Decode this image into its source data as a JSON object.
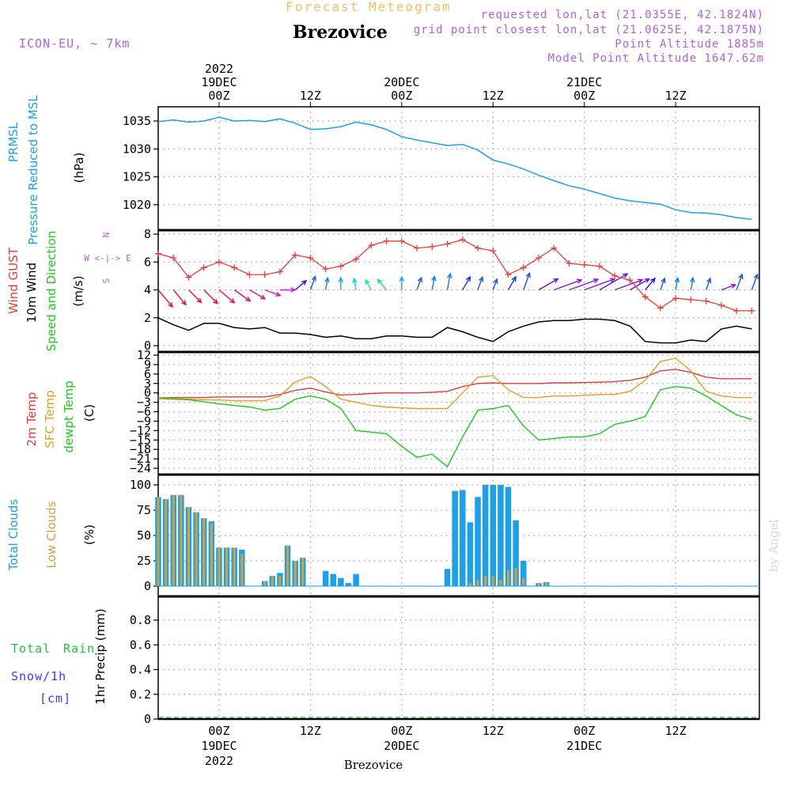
{
  "header": {
    "title": "Forecast Meteogram",
    "location": "Brezovice",
    "model": "ICON-EU, ~ 7km",
    "requested": "requested lon,lat (21.0355E, 42.1824N)",
    "gridpoint": "grid point closest lon,lat (21.0625E, 42.1875N)",
    "altitude": "Point Altitude 1885m",
    "model_altitude": "Model Point Altitude 1647.62m",
    "footer_location": "Brezovice",
    "watermark": "by Angel"
  },
  "time_axis": {
    "top": [
      {
        "hour": 0,
        "lines": [
          "2022",
          "19DEC",
          "00Z"
        ]
      },
      {
        "hour": 12,
        "lines": [
          "12Z"
        ]
      },
      {
        "hour": 24,
        "lines": [
          "20DEC",
          "00Z"
        ]
      },
      {
        "hour": 36,
        "lines": [
          "12Z"
        ]
      },
      {
        "hour": 48,
        "lines": [
          "21DEC",
          "00Z"
        ]
      },
      {
        "hour": 60,
        "lines": [
          "12Z"
        ]
      }
    ],
    "bottom": [
      {
        "hour": 0,
        "lines": [
          "00Z",
          "19DEC",
          "2022"
        ]
      },
      {
        "hour": 12,
        "lines": [
          "12Z"
        ]
      },
      {
        "hour": 24,
        "lines": [
          "00Z",
          "20DEC"
        ]
      },
      {
        "hour": 36,
        "lines": [
          "12Z"
        ]
      },
      {
        "hour": 48,
        "lines": [
          "00Z",
          "21DEC"
        ]
      },
      {
        "hour": 60,
        "lines": [
          "12Z"
        ]
      }
    ]
  },
  "panels": {
    "pressure": {
      "labels": [
        "PRMSL",
        "Pressure Reduced to MSL"
      ],
      "unit": "(hPa)"
    },
    "wind": {
      "labels": [
        "Wind GUST",
        "10m Wind",
        "Speed and Direction"
      ],
      "unit": "(m/s)",
      "compass": [
        "N",
        "W <-|-> E",
        "S"
      ]
    },
    "temperature": {
      "labels": [
        "2m Temp",
        "SFC Temp",
        "dewpt Temp"
      ],
      "unit": "(C)"
    },
    "clouds": {
      "labels": [
        "Total Clouds",
        "Low Clouds"
      ],
      "unit": "(%)"
    },
    "precip": {
      "labels": [
        "Total",
        "Rain",
        "Snow/1h",
        "[cm]"
      ],
      "axis_label": "1hr Precip (mm)"
    }
  },
  "colors": {
    "pressure": "#1ea0e6",
    "gust": "#e83c3c",
    "wind": "#000000",
    "t2m": "#e03a3a",
    "sfc": "#e0a020",
    "dewpt": "#1ec81e",
    "total_clouds": "#1ea0e6",
    "low_clouds": "#d2a040",
    "header_purple": "#b060e0",
    "title_orange": "#f0c060",
    "rain_green": "#20c040",
    "snow_blue": "#3b3bef"
  },
  "chart_data": [
    {
      "type": "line",
      "name": "pressure",
      "x_unit": "hours from 19DEC 00Z",
      "ylabel": "PRMSL Pressure Reduced to MSL (hPa)",
      "ylim": [
        1017,
        1037
      ],
      "yticks": [
        1020,
        1025,
        1030,
        1035
      ],
      "xlim": [
        -8,
        71
      ],
      "grid": true,
      "series": [
        {
          "x": [
            -8,
            -6,
            -4,
            -2,
            0,
            2,
            4,
            6,
            8,
            10,
            12,
            14,
            16,
            18,
            20,
            22,
            24,
            26,
            28,
            30,
            32,
            34,
            36,
            38,
            40,
            42,
            44,
            46,
            48,
            50,
            52,
            54,
            56,
            58,
            60,
            62,
            64,
            66,
            68,
            70
          ],
          "y": [
            1034.9,
            1035.2,
            1034.8,
            1035.0,
            1035.7,
            1035.0,
            1035.1,
            1034.9,
            1035.4,
            1034.6,
            1033.5,
            1033.6,
            1034.0,
            1034.8,
            1034.3,
            1033.5,
            1032.2,
            1031.6,
            1031.1,
            1030.6,
            1030.8,
            1029.8,
            1028.0,
            1027.3,
            1026.4,
            1025.3,
            1024.3,
            1023.4,
            1022.8,
            1022.0,
            1021.2,
            1020.7,
            1020.4,
            1020.1,
            1019.1,
            1018.6,
            1018.5,
            1018.2,
            1017.7,
            1017.4
          ]
        }
      ]
    },
    {
      "type": "line",
      "name": "wind",
      "x_unit": "hours from 19DEC 00Z",
      "ylabel": "Wind GUST / 10m Wind Speed and Direction (m/s)",
      "ylim": [
        0,
        8
      ],
      "yticks": [
        0,
        2,
        4,
        6,
        8
      ],
      "xlim": [
        -8,
        71
      ],
      "grid": true,
      "series": [
        {
          "name": "Wind GUST",
          "x": [
            -8,
            -6,
            -4,
            -2,
            0,
            2,
            4,
            6,
            8,
            10,
            12,
            14,
            16,
            18,
            20,
            22,
            24,
            26,
            28,
            30,
            32,
            34,
            36,
            38,
            40,
            42,
            44,
            46,
            48,
            50,
            52,
            54,
            56,
            58,
            60,
            62,
            64,
            66,
            68,
            70
          ],
          "y": [
            6.6,
            6.3,
            4.9,
            5.6,
            6.0,
            5.6,
            5.1,
            5.1,
            5.3,
            6.5,
            6.3,
            5.5,
            5.7,
            6.2,
            7.2,
            7.5,
            7.5,
            7.0,
            7.1,
            7.3,
            7.6,
            7.0,
            6.8,
            5.1,
            5.6,
            6.3,
            7.0,
            5.9,
            5.8,
            5.7,
            5.0,
            4.7,
            3.5,
            2.7,
            3.4,
            3.3,
            3.2,
            2.9,
            2.5,
            2.5
          ]
        },
        {
          "name": "10m Wind",
          "x": [
            -8,
            -6,
            -4,
            -2,
            0,
            2,
            4,
            6,
            8,
            10,
            12,
            14,
            16,
            18,
            20,
            22,
            24,
            26,
            28,
            30,
            32,
            34,
            36,
            38,
            40,
            42,
            44,
            46,
            48,
            50,
            52,
            54,
            56,
            58,
            60,
            62,
            64,
            66,
            68,
            70
          ],
          "y": [
            2.0,
            1.5,
            1.1,
            1.6,
            1.6,
            1.3,
            1.2,
            1.3,
            0.9,
            0.9,
            0.8,
            0.6,
            0.7,
            0.5,
            0.5,
            0.7,
            0.7,
            0.6,
            0.6,
            1.3,
            1.0,
            0.6,
            0.3,
            1.0,
            1.4,
            1.7,
            1.8,
            1.8,
            1.9,
            1.9,
            1.8,
            1.4,
            0.3,
            0.2,
            0.2,
            0.4,
            0.3,
            1.2,
            1.4,
            1.2
          ]
        }
      ],
      "wind_arrows": {
        "baseline": 4,
        "x": [
          -8,
          -6,
          -4,
          -2,
          0,
          2,
          4,
          6,
          8,
          10,
          12,
          14,
          16,
          18,
          20,
          22,
          24,
          26,
          28,
          30,
          32,
          34,
          36,
          38,
          40,
          42,
          44,
          46,
          48,
          50,
          52,
          54,
          56,
          58,
          60,
          62,
          64,
          66,
          68,
          70
        ],
        "dir": [
          320,
          320,
          315,
          315,
          310,
          305,
          300,
          290,
          270,
          230,
          200,
          190,
          180,
          170,
          150,
          140,
          180,
          200,
          190,
          190,
          210,
          200,
          200,
          210,
          200,
          240,
          250,
          250,
          250,
          240,
          250,
          240,
          220,
          200,
          190,
          190,
          200,
          250,
          200,
          200
        ],
        "speed": [
          2.0,
          1.6,
          1.4,
          1.6,
          1.7,
          1.6,
          1.4,
          1.2,
          1.0,
          0.9,
          0.9,
          0.6,
          0.6,
          0.5,
          0.5,
          0.8,
          0.7,
          0.7,
          0.8,
          1.2,
          1.0,
          0.8,
          0.5,
          1.0,
          1.4,
          2.0,
          3.0,
          3.2,
          3.4,
          3.4,
          3.0,
          2.0,
          1.0,
          0.6,
          0.6,
          0.6,
          0.6,
          1.0,
          1.2,
          1.2
        ]
      }
    },
    {
      "type": "line",
      "name": "temperature",
      "x_unit": "hours from 19DEC 00Z",
      "ylabel": "2m Temp / SFC Temp / dewpt Temp (C)",
      "ylim": [
        -25,
        12
      ],
      "yticks": [
        12,
        9,
        6,
        3,
        0,
        -3,
        -6,
        -9,
        -12,
        -15,
        -18,
        -21,
        -24
      ],
      "xlim": [
        -8,
        71
      ],
      "grid": true,
      "series": [
        {
          "name": "2m Temp",
          "x": [
            -8,
            -6,
            -4,
            -2,
            0,
            2,
            4,
            6,
            8,
            10,
            12,
            14,
            16,
            18,
            20,
            22,
            24,
            26,
            28,
            30,
            32,
            34,
            36,
            38,
            40,
            42,
            44,
            46,
            48,
            50,
            52,
            54,
            56,
            58,
            60,
            62,
            64,
            66,
            68,
            70
          ],
          "y": [
            -1.5,
            -1.5,
            -1.5,
            -1.5,
            -1.3,
            -1.3,
            -1.3,
            -1.3,
            -0.5,
            0.8,
            1.5,
            0.3,
            -0.7,
            -0.5,
            -0.2,
            0.0,
            0.0,
            0.0,
            0.2,
            0.5,
            2.0,
            3.0,
            3.2,
            3.0,
            3.0,
            3.0,
            3.2,
            3.2,
            3.3,
            3.4,
            3.6,
            4.0,
            5.0,
            7.0,
            7.5,
            6.5,
            5.0,
            4.5,
            4.5,
            4.5
          ]
        },
        {
          "name": "SFC Temp",
          "x": [
            -8,
            -6,
            -4,
            -2,
            0,
            2,
            4,
            6,
            8,
            10,
            12,
            14,
            16,
            18,
            20,
            22,
            24,
            26,
            28,
            30,
            32,
            34,
            36,
            38,
            40,
            42,
            44,
            46,
            48,
            50,
            52,
            54,
            56,
            58,
            60,
            62,
            64,
            66,
            68,
            70
          ],
          "y": [
            -1.5,
            -1.8,
            -2.0,
            -2.2,
            -2.3,
            -2.5,
            -2.5,
            -2.5,
            -1.0,
            3.5,
            5.2,
            2.0,
            -2.0,
            -3.0,
            -4.0,
            -4.5,
            -4.8,
            -5.0,
            -5.0,
            -5.0,
            0.0,
            5.0,
            5.5,
            1.0,
            -1.5,
            -1.5,
            -1.0,
            -1.0,
            -0.8,
            -0.5,
            -0.5,
            0.5,
            4.0,
            10.0,
            11.0,
            7.0,
            0.5,
            -1.0,
            -1.5,
            -1.5
          ]
        },
        {
          "name": "dewpt Temp",
          "x": [
            -8,
            -6,
            -4,
            -2,
            0,
            2,
            4,
            6,
            8,
            10,
            12,
            14,
            16,
            18,
            20,
            22,
            24,
            26,
            28,
            30,
            32,
            34,
            36,
            38,
            40,
            42,
            44,
            46,
            48,
            50,
            52,
            54,
            56,
            58,
            60,
            62,
            64,
            66,
            68,
            70
          ],
          "y": [
            -1.8,
            -2.0,
            -2.2,
            -2.8,
            -3.5,
            -4.0,
            -4.5,
            -5.5,
            -5.0,
            -2.0,
            -1.0,
            -2.0,
            -5.0,
            -12.0,
            -12.5,
            -13.0,
            -17.0,
            -20.5,
            -19.5,
            -23.5,
            -14.0,
            -5.5,
            -5.0,
            -4.0,
            -10.5,
            -15.0,
            -14.5,
            -14.0,
            -14.0,
            -13.0,
            -10.0,
            -9.0,
            -7.5,
            1.0,
            2.0,
            1.5,
            -1.0,
            -4.0,
            -7.0,
            -8.5
          ]
        }
      ]
    },
    {
      "type": "bar",
      "name": "clouds",
      "x_unit": "hours from 19DEC 00Z",
      "ylabel": "Total Clouds / Low Clouds (%)",
      "ylim": [
        0,
        100
      ],
      "yticks": [
        0,
        25,
        50,
        75,
        100
      ],
      "xlim": [
        -8,
        71
      ],
      "grid": true,
      "x": [
        -8,
        -7,
        -6,
        -5,
        -4,
        -3,
        -2,
        -1,
        0,
        1,
        2,
        3,
        4,
        5,
        6,
        7,
        8,
        9,
        10,
        11,
        12,
        13,
        14,
        15,
        16,
        17,
        18,
        19,
        20,
        21,
        22,
        23,
        24,
        25,
        26,
        27,
        28,
        29,
        30,
        31,
        32,
        33,
        34,
        35,
        36,
        37,
        38,
        39,
        40,
        41,
        42,
        43,
        44,
        45,
        46,
        47,
        48,
        49,
        50,
        51,
        52,
        53,
        54,
        55,
        56,
        57,
        58,
        59,
        60,
        61,
        62,
        63,
        64,
        65,
        66,
        67,
        68,
        69,
        70
      ],
      "series": [
        {
          "name": "Total Clouds",
          "values": [
            88,
            86,
            90,
            90,
            78,
            73,
            67,
            64,
            38,
            38,
            38,
            36,
            0,
            0,
            5,
            10,
            13,
            40,
            25,
            28,
            0,
            0,
            15,
            12,
            8,
            3,
            12,
            0,
            0,
            0,
            0,
            0,
            0,
            0,
            0,
            0,
            0,
            0,
            17,
            94,
            95,
            63,
            88,
            100,
            100,
            100,
            98,
            65,
            25,
            0,
            3,
            4,
            0,
            0,
            0,
            0,
            0,
            0,
            0,
            0,
            0,
            0,
            0,
            0,
            0,
            0,
            0,
            0,
            0,
            0,
            0,
            0,
            0,
            0,
            0,
            0,
            0,
            0,
            0
          ]
        },
        {
          "name": "Low Clouds",
          "values": [
            88,
            86,
            90,
            90,
            78,
            73,
            67,
            62,
            38,
            38,
            38,
            32,
            0,
            0,
            5,
            10,
            10,
            40,
            25,
            28,
            0,
            0,
            0,
            0,
            0,
            0,
            0,
            0,
            0,
            0,
            0,
            0,
            0,
            0,
            0,
            0,
            0,
            0,
            0,
            0,
            0,
            3,
            6,
            10,
            10,
            6,
            16,
            18,
            8,
            0,
            3,
            4,
            0,
            0,
            0,
            0,
            0,
            0,
            0,
            0,
            0,
            0,
            0,
            0,
            0,
            0,
            0,
            0,
            0,
            0,
            0,
            0,
            0,
            0,
            0,
            0,
            0,
            0,
            0
          ]
        }
      ]
    },
    {
      "type": "bar",
      "name": "precip",
      "x_unit": "hours from 19DEC 00Z",
      "ylabel": "1hr Precip (mm)",
      "ylim": [
        0,
        1
      ],
      "yticks": [
        0,
        0.2,
        0.4,
        0.6,
        0.8
      ],
      "xlim": [
        -8,
        71
      ],
      "grid": true,
      "series": [
        {
          "name": "Total Rain",
          "values": [
            0
          ]
        }
      ]
    }
  ]
}
